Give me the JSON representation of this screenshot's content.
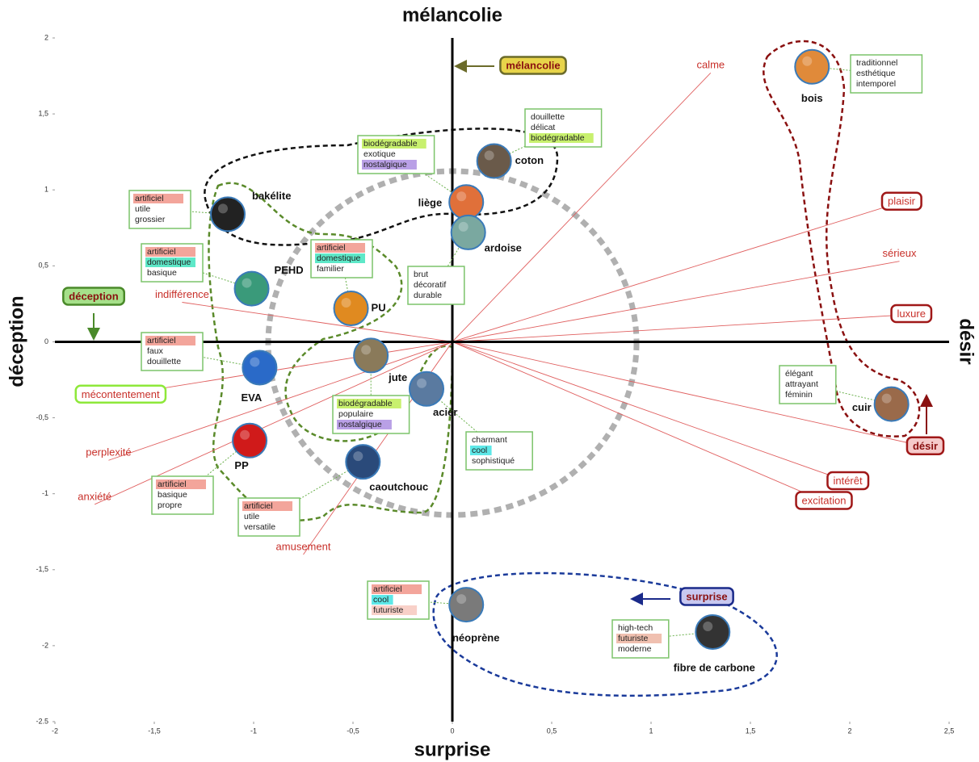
{
  "chart_data": {
    "type": "scatter",
    "axis_titles": {
      "top": "mélancolie",
      "bottom": "surprise",
      "left": "déception",
      "right": "désir"
    },
    "xlim": [
      -2,
      2.5
    ],
    "ylim": [
      -2.5,
      2
    ],
    "xticks": [
      -2,
      {
        "value": -1.5,
        "label": "-1,5"
      },
      -1,
      {
        "value": -0.5,
        "label": "-0,5"
      },
      0,
      {
        "value": 0.5,
        "label": "0,5"
      },
      1,
      {
        "value": 1.5,
        "label": "1,5"
      },
      2,
      {
        "value": 2.5,
        "label": "2,5"
      }
    ],
    "yticks": [
      -2.5,
      -2,
      {
        "value": -1.5,
        "label": "-1,5"
      },
      -1,
      {
        "value": -0.5,
        "label": "-0,5"
      },
      0,
      {
        "value": 0.5,
        "label": "0,5"
      },
      1,
      {
        "value": 1.5,
        "label": "1,5"
      },
      2
    ],
    "materials": [
      {
        "name": "bois",
        "x": 1.81,
        "y": 1.81,
        "color": "#e08a3a"
      },
      {
        "name": "coton",
        "x": 0.21,
        "y": 1.19,
        "color": "#6a5a4a"
      },
      {
        "name": "liège",
        "x": 0.07,
        "y": 0.92,
        "color": "#e0703a"
      },
      {
        "name": "ardoise",
        "x": 0.08,
        "y": 0.72,
        "color": "#7aa8a0"
      },
      {
        "name": "bakélite",
        "x": -1.13,
        "y": 0.84,
        "color": "#222222"
      },
      {
        "name": "PEHD",
        "x": -1.01,
        "y": 0.35,
        "color": "#3a9a7a"
      },
      {
        "name": "PU",
        "x": -0.51,
        "y": 0.22,
        "color": "#e08a20"
      },
      {
        "name": "EVA",
        "x": -0.97,
        "y": -0.17,
        "color": "#2a6ac8"
      },
      {
        "name": "jute",
        "x": -0.41,
        "y": -0.09,
        "color": "#8a7a5a"
      },
      {
        "name": "acier",
        "x": -0.13,
        "y": -0.31,
        "color": "#5a7aa0"
      },
      {
        "name": "PP",
        "x": -1.02,
        "y": -0.65,
        "color": "#d01a1a"
      },
      {
        "name": "caoutchouc",
        "x": -0.45,
        "y": -0.79,
        "color": "#2a4a7a"
      },
      {
        "name": "néoprène",
        "x": 0.07,
        "y": -1.73,
        "color": "#7a7a7a"
      },
      {
        "name": "fibre de carbone",
        "x": 1.31,
        "y": -1.91,
        "color": "#333333"
      },
      {
        "name": "cuir",
        "x": 2.21,
        "y": -0.41,
        "color": "#9a6a4a"
      }
    ],
    "annotations": [
      {
        "lines": [
          {
            "text": "traditionnel"
          },
          {
            "text": "esthétique"
          },
          {
            "text": "intemporel"
          }
        ]
      },
      {
        "lines": [
          {
            "text": "douillette"
          },
          {
            "text": "délicat"
          },
          {
            "text": "biodégradable",
            "highlight": "#c8f06e"
          }
        ]
      },
      {
        "lines": [
          {
            "text": "biodégradable",
            "highlight": "#c8f06e"
          },
          {
            "text": "exotique"
          },
          {
            "text": "nostalgique",
            "highlight": "#b9a0e6"
          }
        ]
      },
      {
        "lines": [
          {
            "text": "artificiel",
            "highlight": "#f3a59b"
          },
          {
            "text": "utile"
          },
          {
            "text": "grossier"
          }
        ]
      },
      {
        "lines": [
          {
            "text": "artificiel",
            "highlight": "#f3a59b"
          },
          {
            "text": "domestique",
            "highlight": "#5ee8c8"
          },
          {
            "text": "basique"
          }
        ]
      },
      {
        "lines": [
          {
            "text": "artificiel",
            "highlight": "#f3a59b"
          },
          {
            "text": "domestique",
            "highlight": "#5ee8c8"
          },
          {
            "text": "familier"
          }
        ]
      },
      {
        "lines": [
          {
            "text": "brut"
          },
          {
            "text": "décoratif"
          },
          {
            "text": "durable"
          }
        ]
      },
      {
        "lines": [
          {
            "text": "artificiel",
            "highlight": "#f3a59b"
          },
          {
            "text": "faux"
          },
          {
            "text": "douillette"
          }
        ]
      },
      {
        "lines": [
          {
            "text": "biodégradable",
            "highlight": "#c8f06e"
          },
          {
            "text": "populaire"
          },
          {
            "text": "nostalgique",
            "highlight": "#b9a0e6"
          }
        ]
      },
      {
        "lines": [
          {
            "text": "charmant"
          },
          {
            "text": "cool",
            "highlight": "#5ee8e8"
          },
          {
            "text": "sophistiqué"
          }
        ]
      },
      {
        "lines": [
          {
            "text": "artificiel",
            "highlight": "#f3a59b"
          },
          {
            "text": "basique"
          },
          {
            "text": "propre"
          }
        ]
      },
      {
        "lines": [
          {
            "text": "artificiel",
            "highlight": "#f3a59b"
          },
          {
            "text": "utile"
          },
          {
            "text": "versatile"
          }
        ]
      },
      {
        "lines": [
          {
            "text": "artificiel",
            "highlight": "#f3a59b"
          },
          {
            "text": "cool",
            "highlight": "#5ee8e8"
          },
          {
            "text": "futuriste",
            "highlight": "#f8d0c8"
          }
        ]
      },
      {
        "lines": [
          {
            "text": "high-tech"
          },
          {
            "text": "futuriste",
            "highlight": "#f0c0b0"
          },
          {
            "text": "moderne"
          }
        ]
      },
      {
        "lines": [
          {
            "text": "élégant"
          },
          {
            "text": "attrayant"
          },
          {
            "text": "féminin"
          }
        ]
      }
    ],
    "vectors": [
      {
        "name": "calme",
        "x": 1.3,
        "y": 1.77,
        "color": "#c8302a"
      },
      {
        "name": "plaisir",
        "x": 2.26,
        "y": 0.92,
        "color": "#c8302a",
        "box": {
          "stroke": "#a01818",
          "fill": "#ffffff"
        }
      },
      {
        "name": "sérieux",
        "x": 2.25,
        "y": 0.53,
        "color": "#c8302a"
      },
      {
        "name": "luxure",
        "x": 2.31,
        "y": 0.18,
        "color": "#c8302a",
        "box": {
          "stroke": "#a01818",
          "fill": "#ffffff"
        }
      },
      {
        "name": "désir",
        "x": 2.38,
        "y": -0.69,
        "color": "#8a1010",
        "box": {
          "stroke": "#a01818",
          "fill": "#f5caca"
        }
      },
      {
        "name": "intérêt",
        "x": 1.99,
        "y": -0.92,
        "color": "#c8302a",
        "box": {
          "stroke": "#a01818",
          "fill": "#ffffff"
        }
      },
      {
        "name": "excitation",
        "x": 1.87,
        "y": -1.05,
        "color": "#c8302a",
        "box": {
          "stroke": "#a01818",
          "fill": "#ffffff"
        }
      },
      {
        "name": "amusement",
        "x": -0.75,
        "y": -1.4,
        "color": "#c8302a"
      },
      {
        "name": "anxiété",
        "x": -1.8,
        "y": -1.07,
        "color": "#c8302a"
      },
      {
        "name": "perplexité",
        "x": -1.73,
        "y": -0.78,
        "color": "#c8302a"
      },
      {
        "name": "indifférence",
        "x": -1.36,
        "y": 0.26,
        "color": "#c8302a"
      },
      {
        "name": "mécontentement",
        "x": -1.67,
        "y": -0.35,
        "color": "#c8302a",
        "box": {
          "stroke": "#8ee83a",
          "fill": "#ffffff"
        }
      }
    ],
    "poles": [
      {
        "name": "mélancolie",
        "color": "#8a1010",
        "box": {
          "stroke": "#6b6b2a",
          "fill": "#e8d44a"
        }
      },
      {
        "name": "déception",
        "color": "#8a1010",
        "box": {
          "stroke": "#4a8a2a",
          "fill": "#a6e08a"
        }
      },
      {
        "name": "surprise",
        "color": "#8a1010",
        "box": {
          "stroke": "#1a2a8a",
          "fill": "#c8c8f0"
        }
      }
    ]
  }
}
